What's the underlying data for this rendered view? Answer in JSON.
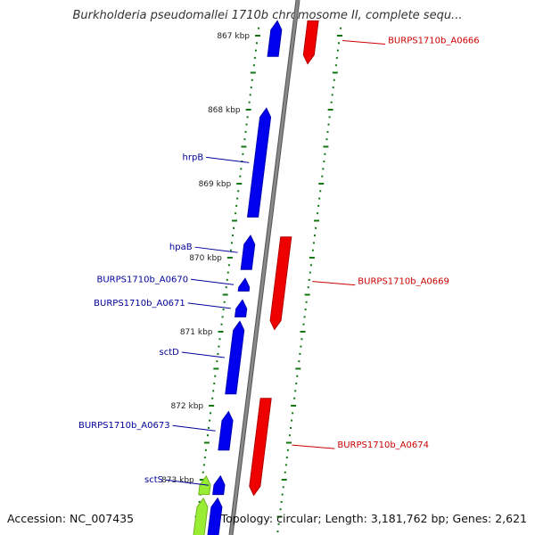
{
  "title": "Burkholderia pseudomallei 1710b chromosome II, complete sequ...",
  "footer": {
    "accession": "Accession: NC_007435",
    "stats": "Topology: circular; Length: 3,181,762 bp; Genes: 2,621"
  },
  "colors": {
    "forward_gene": "#0000ee",
    "reverse_gene": "#ee0000",
    "highlight_gene": "#99ee33",
    "forward_label": "#000099",
    "reverse_label": "#cc0000",
    "tick": "#117711",
    "backbone": "#888888"
  },
  "scale": {
    "ticks": [
      {
        "kbp": 867,
        "label": "867 kbp"
      },
      {
        "kbp": 868,
        "label": "868 kbp"
      },
      {
        "kbp": 869,
        "label": "869 kbp"
      },
      {
        "kbp": 870,
        "label": "870 kbp"
      },
      {
        "kbp": 871,
        "label": "871 kbp"
      },
      {
        "kbp": 872,
        "label": "872 kbp"
      },
      {
        "kbp": 873,
        "label": "873 kbp"
      }
    ]
  },
  "features": [
    {
      "id": "f1",
      "strand": "+",
      "start_kbp": 866.8,
      "end_kbp": 867.28,
      "label": ""
    },
    {
      "id": "f2",
      "strand": "-",
      "start_kbp": 866.8,
      "end_kbp": 867.38,
      "label": "BURPS1710b_A0666"
    },
    {
      "id": "f3",
      "strand": "+",
      "start_kbp": 867.98,
      "end_kbp": 869.45,
      "label": "hrpB"
    },
    {
      "id": "f4",
      "strand": "+",
      "start_kbp": 869.7,
      "end_kbp": 870.16,
      "label": "hpaB"
    },
    {
      "id": "f5",
      "strand": "+",
      "start_kbp": 870.28,
      "end_kbp": 870.45,
      "label": "BURPS1710b_A0670"
    },
    {
      "id": "f6",
      "strand": "+",
      "start_kbp": 870.57,
      "end_kbp": 870.8,
      "label": "BURPS1710b_A0671"
    },
    {
      "id": "f7",
      "strand": "-",
      "start_kbp": 869.72,
      "end_kbp": 870.97,
      "label": "BURPS1710b_A0669"
    },
    {
      "id": "f8",
      "strand": "+",
      "start_kbp": 870.86,
      "end_kbp": 871.84,
      "label": "sctD"
    },
    {
      "id": "f9",
      "strand": "+",
      "start_kbp": 872.08,
      "end_kbp": 872.6,
      "label": "BURPS1710b_A0673"
    },
    {
      "id": "f10",
      "strand": "-",
      "start_kbp": 871.9,
      "end_kbp": 873.21,
      "label": "BURPS1710b_A0674"
    },
    {
      "id": "f11",
      "strand": "+",
      "start_kbp": 872.95,
      "end_kbp": 873.2,
      "label": "",
      "highlight": true
    },
    {
      "id": "f12",
      "strand": "+",
      "start_kbp": 872.95,
      "end_kbp": 873.2,
      "label": "sctS"
    },
    {
      "id": "f13",
      "strand": "+",
      "start_kbp": 873.25,
      "end_kbp": 873.8,
      "label": "",
      "highlight": true
    },
    {
      "id": "f14",
      "strand": "+",
      "start_kbp": 873.25,
      "end_kbp": 873.8,
      "label": ""
    }
  ]
}
